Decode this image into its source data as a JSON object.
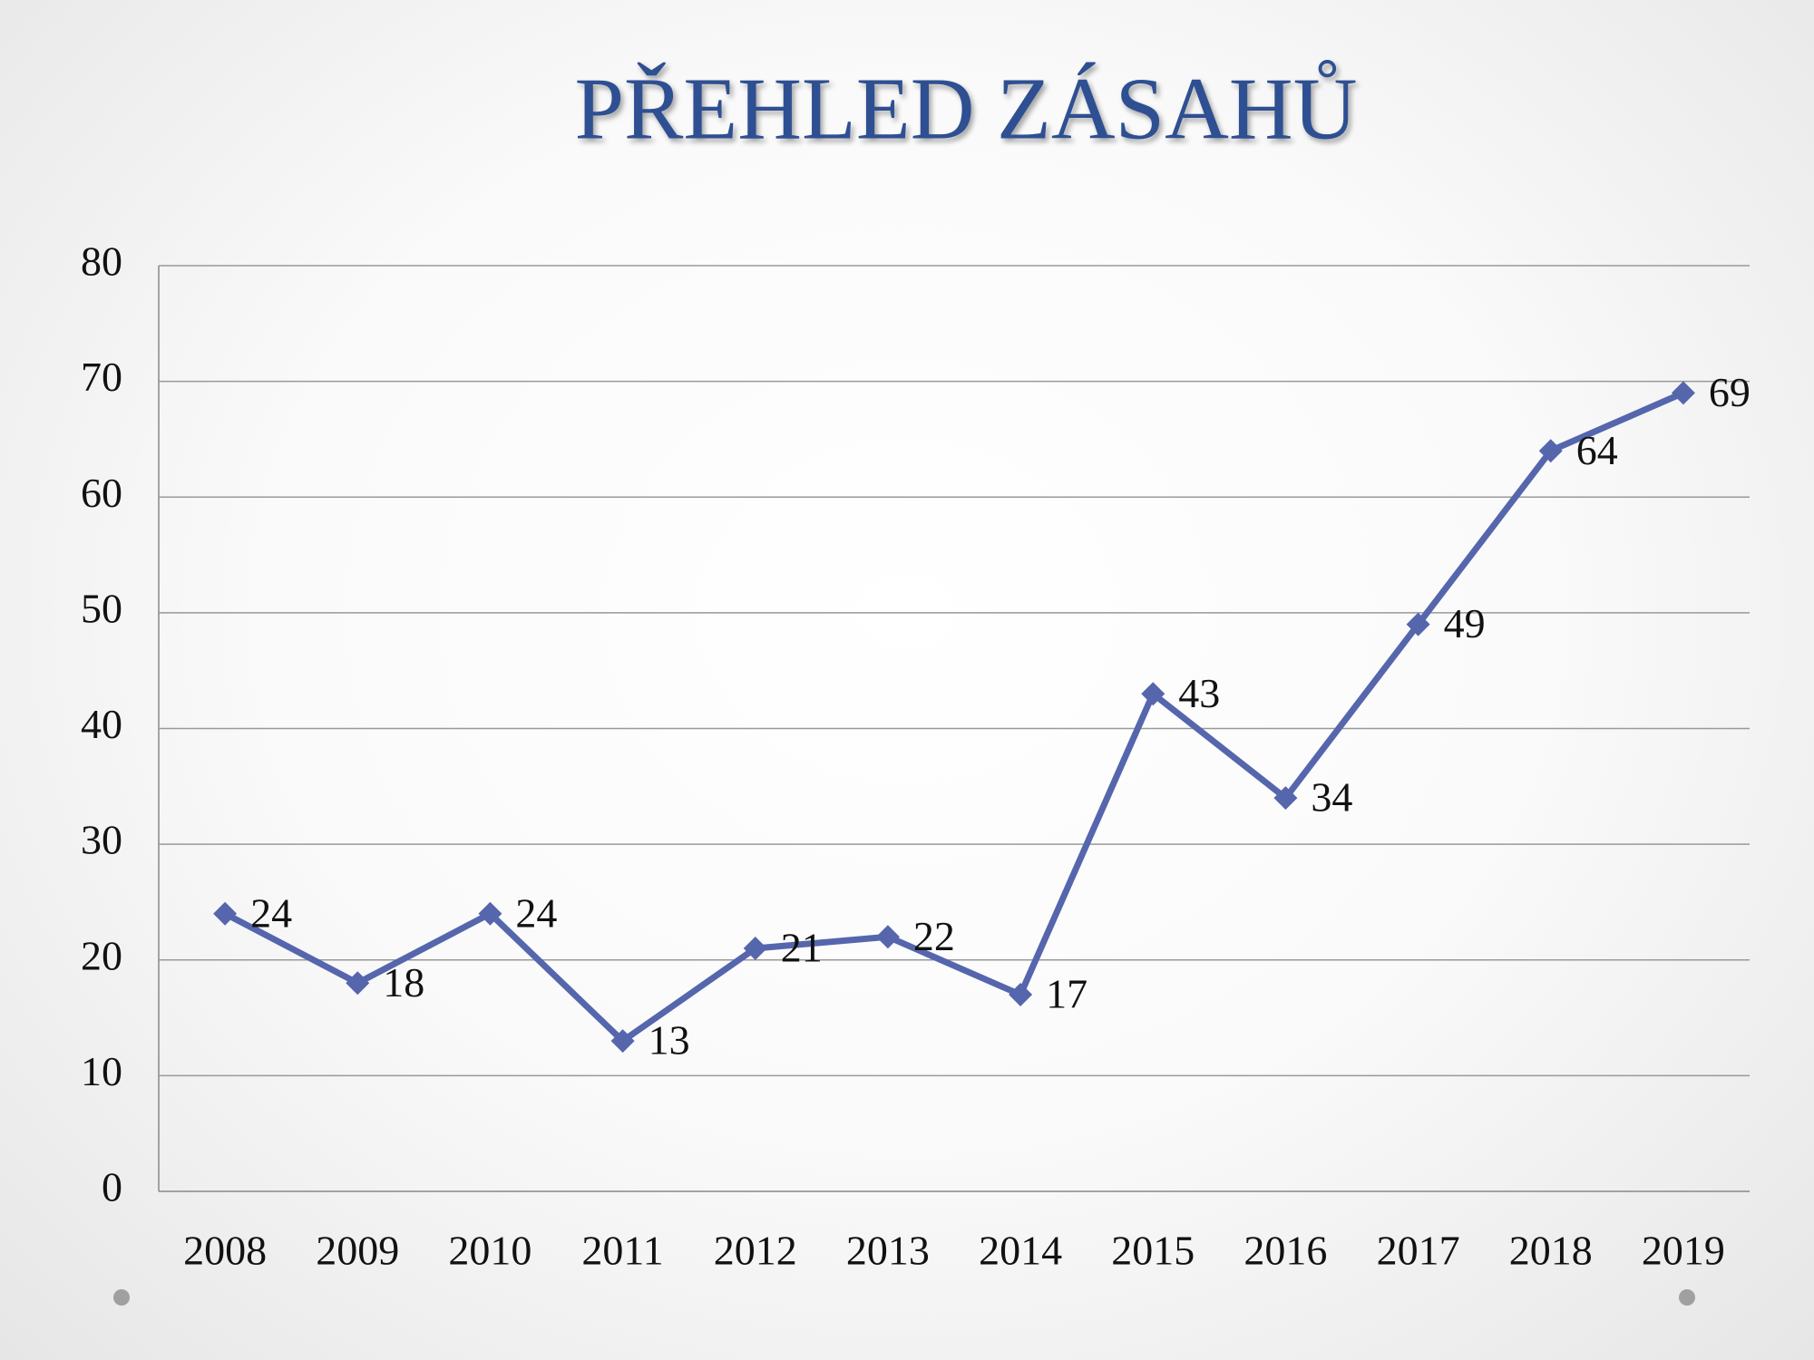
{
  "chart_data": {
    "type": "line",
    "title": "PŘEHLED ZÁSAHŮ",
    "categories": [
      "2008",
      "2009",
      "2010",
      "2011",
      "2012",
      "2013",
      "2014",
      "2015",
      "2016",
      "2017",
      "2018",
      "2019"
    ],
    "values": [
      24,
      18,
      24,
      13,
      21,
      22,
      17,
      43,
      34,
      49,
      64,
      69
    ],
    "color": "#5566ad",
    "ylim": [
      0,
      80
    ],
    "yticks": [
      0,
      10,
      20,
      30,
      40,
      50,
      60,
      70,
      80
    ],
    "grid": true
  }
}
